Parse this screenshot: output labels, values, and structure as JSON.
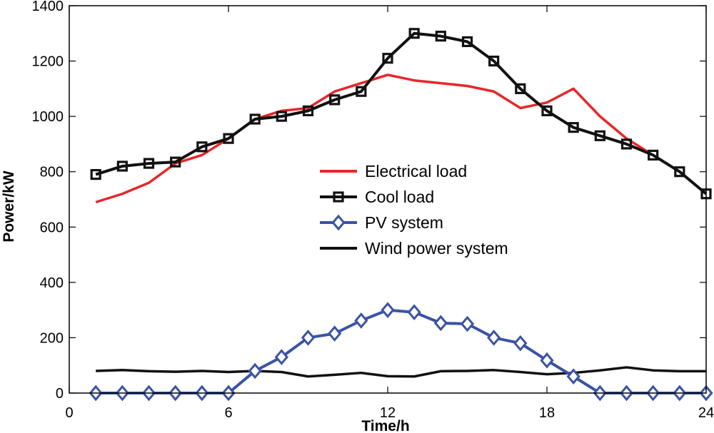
{
  "chart_data": {
    "type": "line",
    "title": "",
    "xlabel": "Time/h",
    "ylabel": "Power/kW",
    "xlim": [
      0,
      24
    ],
    "ylim": [
      0,
      1400
    ],
    "xticks": [
      0,
      6,
      12,
      18,
      24
    ],
    "yticks": [
      0,
      200,
      400,
      600,
      800,
      1000,
      1200,
      1400
    ],
    "xtick_labels": [
      "0",
      "6",
      "12",
      "18",
      "24"
    ],
    "ytick_labels": [
      "0",
      "200",
      "400",
      "600",
      "800",
      "1000",
      "1200",
      "1400"
    ],
    "grid": false,
    "legend_position": "center",
    "x": [
      1,
      2,
      3,
      4,
      5,
      6,
      7,
      8,
      9,
      10,
      11,
      12,
      13,
      14,
      15,
      16,
      17,
      18,
      19,
      20,
      21,
      22,
      23,
      24
    ],
    "series": [
      {
        "name": "Electrical load",
        "color": "#e8262a",
        "marker": "none",
        "values": [
          690,
          720,
          760,
          830,
          860,
          920,
          990,
          1020,
          1030,
          1090,
          1120,
          1150,
          1130,
          1120,
          1110,
          1090,
          1030,
          1050,
          1100,
          1000,
          920,
          860,
          800,
          720
        ]
      },
      {
        "name": "Cool load",
        "color": "#111111",
        "marker": "square",
        "values": [
          790,
          820,
          830,
          835,
          890,
          920,
          990,
          1000,
          1020,
          1060,
          1090,
          1210,
          1300,
          1290,
          1270,
          1200,
          1100,
          1020,
          960,
          930,
          900,
          860,
          800,
          720
        ]
      },
      {
        "name": "PV system",
        "color": "#3a53a4",
        "marker": "diamond",
        "values": [
          0,
          0,
          0,
          0,
          0,
          0,
          80,
          130,
          200,
          215,
          262,
          300,
          292,
          253,
          250,
          200,
          180,
          118,
          60,
          0,
          0,
          0,
          0,
          0
        ]
      },
      {
        "name": "Wind power system",
        "color": "#111111",
        "marker": "none",
        "values": [
          80,
          83,
          79,
          77,
          80,
          76,
          80,
          76,
          60,
          66,
          73,
          61,
          60,
          79,
          80,
          83,
          76,
          68,
          73,
          82,
          93,
          82,
          79,
          79
        ]
      }
    ]
  }
}
